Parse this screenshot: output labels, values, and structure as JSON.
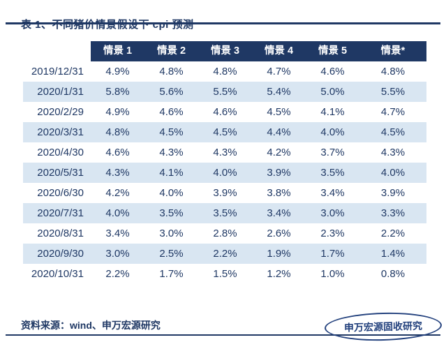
{
  "page": {
    "title": "表 1、不同猪价情景假设下 cpi 预测",
    "source_note": "资料来源：wind、申万宏源研究",
    "stamp_text": "申万宏源固收研究"
  },
  "colors": {
    "navy": "#1f3864",
    "header_bg": "#1f3864",
    "header_text": "#ffffff",
    "row_alt_bg": "#d9e6f2",
    "row_bg": "#ffffff",
    "stamp": "#24427e"
  },
  "chart_data": {
    "type": "table",
    "title": "表 1、不同猪价情景假设下 cpi 预测",
    "row_header": "",
    "columns": [
      "情景 1",
      "情景 2",
      "情景 3",
      "情景 4",
      "情景 5",
      "情景*"
    ],
    "rows": [
      {
        "date": "2019/12/31",
        "values": [
          "4.9%",
          "4.8%",
          "4.8%",
          "4.7%",
          "4.6%",
          "4.8%"
        ]
      },
      {
        "date": "2020/1/31",
        "values": [
          "5.8%",
          "5.6%",
          "5.5%",
          "5.4%",
          "5.0%",
          "5.5%"
        ]
      },
      {
        "date": "2020/2/29",
        "values": [
          "4.9%",
          "4.6%",
          "4.6%",
          "4.5%",
          "4.1%",
          "4.7%"
        ]
      },
      {
        "date": "2020/3/31",
        "values": [
          "4.8%",
          "4.5%",
          "4.5%",
          "4.4%",
          "4.0%",
          "4.5%"
        ]
      },
      {
        "date": "2020/4/30",
        "values": [
          "4.6%",
          "4.3%",
          "4.3%",
          "4.2%",
          "3.7%",
          "4.3%"
        ]
      },
      {
        "date": "2020/5/31",
        "values": [
          "4.3%",
          "4.1%",
          "4.0%",
          "3.9%",
          "3.5%",
          "4.0%"
        ]
      },
      {
        "date": "2020/6/30",
        "values": [
          "4.2%",
          "4.0%",
          "3.9%",
          "3.8%",
          "3.4%",
          "3.9%"
        ]
      },
      {
        "date": "2020/7/31",
        "values": [
          "4.0%",
          "3.5%",
          "3.5%",
          "3.4%",
          "3.0%",
          "3.3%"
        ]
      },
      {
        "date": "2020/8/31",
        "values": [
          "3.4%",
          "3.0%",
          "2.8%",
          "2.6%",
          "2.3%",
          "2.2%"
        ]
      },
      {
        "date": "2020/9/30",
        "values": [
          "3.0%",
          "2.5%",
          "2.2%",
          "1.9%",
          "1.7%",
          "1.4%"
        ]
      },
      {
        "date": "2020/10/31",
        "values": [
          "2.2%",
          "1.7%",
          "1.5%",
          "1.2%",
          "1.0%",
          "0.8%"
        ]
      }
    ]
  }
}
